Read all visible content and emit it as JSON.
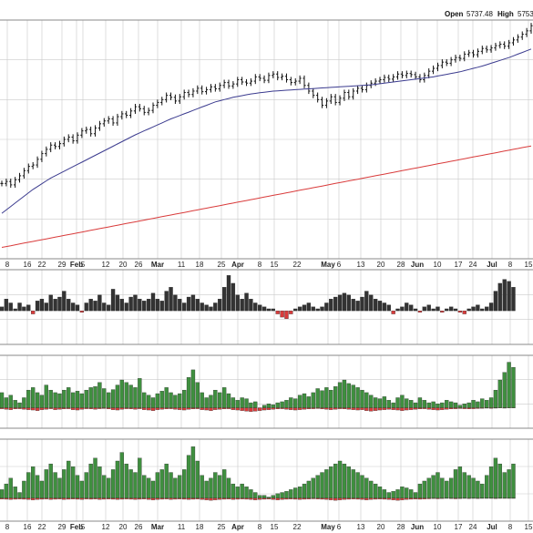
{
  "header": {
    "open_label": "Open",
    "open_value": "5737.48",
    "high_label": "High",
    "high_value": "5753."
  },
  "colors": {
    "background": "#ffffff",
    "panel_border": "#888888",
    "grid": "#c9c9c9",
    "price_bar": "#111111",
    "ma_short": "#3b3b8f",
    "ma_long": "#d93b3b",
    "volume_bar": "#333333",
    "volume_down": "#d93b3b",
    "indicator_up": "#3f8f3f",
    "indicator_down": "#d93b3b"
  },
  "chart_data": {
    "type": "bar",
    "note_series": "OHLC price chart with two moving averages and three histogram indicator panels",
    "x_tick_labels": [
      "8",
      "16",
      "22",
      "29",
      "Feb",
      "5",
      "12",
      "20",
      "26",
      "Mar",
      "11",
      "18",
      "25",
      "Apr",
      "8",
      "15",
      "22",
      "May",
      "6",
      "13",
      "20",
      "28",
      "Jun",
      "10",
      "17",
      "24",
      "Jul",
      "8",
      "15"
    ],
    "x_tick_bold": [
      false,
      false,
      false,
      false,
      true,
      false,
      false,
      false,
      false,
      true,
      false,
      false,
      false,
      true,
      false,
      false,
      false,
      true,
      false,
      false,
      false,
      false,
      true,
      false,
      false,
      false,
      true,
      false,
      false
    ],
    "x_tick_positions": [
      8,
      30,
      46,
      68,
      84,
      91,
      116,
      135,
      152,
      173,
      199,
      219,
      243,
      261,
      285,
      301,
      326,
      360,
      372,
      396,
      418,
      440,
      458,
      480,
      503,
      519,
      540,
      560,
      580
    ],
    "price_closes": [
      4785,
      4792,
      4780,
      4798,
      4812,
      4830,
      4845,
      4850,
      4870,
      4890,
      4905,
      4920,
      4915,
      4925,
      4940,
      4948,
      4935,
      4955,
      4970,
      4975,
      4960,
      4980,
      4995,
      5005,
      5012,
      4998,
      5020,
      5030,
      5025,
      5040,
      5055,
      5048,
      5035,
      5042,
      5060,
      5070,
      5080,
      5095,
      5088,
      5075,
      5090,
      5105,
      5098,
      5110,
      5120,
      5108,
      5115,
      5125,
      5118,
      5130,
      5140,
      5128,
      5135,
      5150,
      5142,
      5138,
      5145,
      5160,
      5155,
      5148,
      5165,
      5170,
      5158,
      5162,
      5150,
      5140,
      5145,
      5155,
      5130,
      5110,
      5095,
      5080,
      5060,
      5075,
      5090,
      5070,
      5085,
      5105,
      5090,
      5110,
      5120,
      5115,
      5130,
      5138,
      5145,
      5150,
      5158,
      5152,
      5160,
      5170,
      5165,
      5172,
      5168,
      5160,
      5150,
      5165,
      5180,
      5190,
      5200,
      5212,
      5208,
      5220,
      5228,
      5225,
      5240,
      5245,
      5238,
      5250,
      5260,
      5255,
      5262,
      5270,
      5275,
      5268,
      5280,
      5290,
      5300,
      5310,
      5322,
      5340
    ],
    "ma50": [
      4680,
      4692,
      4704,
      4716,
      4728,
      4740,
      4752,
      4764,
      4774,
      4784,
      4794,
      4804,
      4812,
      4820,
      4828,
      4836,
      4844,
      4852,
      4860,
      4868,
      4876,
      4884,
      4892,
      4900,
      4908,
      4916,
      4924,
      4932,
      4940,
      4948,
      4956,
      4963,
      4970,
      4977,
      4984,
      4991,
      4998,
      5005,
      5012,
      5018,
      5024,
      5030,
      5036,
      5042,
      5048,
      5054,
      5060,
      5066,
      5072,
      5076,
      5080,
      5084,
      5088,
      5091,
      5094,
      5097,
      5100,
      5102,
      5104,
      5106,
      5108,
      5110,
      5111,
      5112,
      5113,
      5114,
      5115,
      5116,
      5117,
      5118,
      5119,
      5120,
      5121,
      5122,
      5123,
      5124,
      5125,
      5126,
      5127,
      5128,
      5129,
      5130,
      5131,
      5132,
      5134,
      5136,
      5138,
      5140,
      5142,
      5144,
      5146,
      5148,
      5150,
      5152,
      5154,
      5156,
      5158,
      5160,
      5163,
      5166,
      5169,
      5172,
      5175,
      5178,
      5182,
      5186,
      5190,
      5194,
      5198,
      5203,
      5208,
      5213,
      5218,
      5223,
      5228,
      5234,
      5240,
      5246,
      5252,
      5258
    ],
    "ma200": [
      4560,
      4563,
      4566,
      4569,
      4572,
      4575,
      4578,
      4581,
      4584,
      4587,
      4590,
      4593,
      4596,
      4599,
      4602,
      4605,
      4608,
      4611,
      4614,
      4617,
      4620,
      4623,
      4626,
      4629,
      4632,
      4635,
      4638,
      4641,
      4644,
      4647,
      4650,
      4653,
      4656,
      4659,
      4662,
      4665,
      4668,
      4671,
      4674,
      4677,
      4680,
      4683,
      4686,
      4689,
      4692,
      4695,
      4698,
      4701,
      4704,
      4707,
      4710,
      4713,
      4716,
      4719,
      4722,
      4725,
      4728,
      4731,
      4734,
      4737,
      4740,
      4743,
      4746,
      4749,
      4752,
      4755,
      4758,
      4761,
      4764,
      4767,
      4770,
      4773,
      4776,
      4779,
      4782,
      4785,
      4788,
      4791,
      4794,
      4797,
      4800,
      4803,
      4806,
      4809,
      4812,
      4815,
      4818,
      4821,
      4824,
      4827,
      4830,
      4833,
      4836,
      4839,
      4842,
      4845,
      4848,
      4851,
      4854,
      4857,
      4860,
      4863,
      4866,
      4869,
      4872,
      4875,
      4878,
      4881,
      4884,
      4887,
      4890,
      4893,
      4896,
      4899,
      4902,
      4905,
      4908,
      4911,
      4914,
      4917
    ],
    "price_ylim": [
      4520,
      5360
    ],
    "volume_panel": [
      0.1,
      0.3,
      0.2,
      0.05,
      0.2,
      0.1,
      0.15,
      -0.1,
      0.25,
      0.3,
      0.2,
      0.4,
      0.3,
      0.35,
      0.5,
      0.3,
      0.2,
      0.15,
      -0.05,
      0.2,
      0.3,
      0.25,
      0.4,
      0.2,
      0.15,
      0.55,
      0.4,
      0.3,
      0.2,
      0.35,
      0.4,
      0.3,
      0.25,
      0.3,
      0.45,
      0.3,
      0.25,
      0.5,
      0.6,
      0.4,
      0.3,
      0.2,
      0.35,
      0.4,
      0.3,
      0.2,
      0.15,
      0.1,
      0.2,
      0.3,
      0.6,
      0.9,
      0.7,
      0.4,
      0.3,
      0.45,
      0.3,
      0.2,
      0.15,
      0.1,
      0.05,
      0.05,
      -0.1,
      -0.2,
      -0.25,
      -0.1,
      0.05,
      0.1,
      0.15,
      0.2,
      0.1,
      0.05,
      0.1,
      0.2,
      0.3,
      0.35,
      0.4,
      0.45,
      0.4,
      0.3,
      0.25,
      0.35,
      0.5,
      0.4,
      0.3,
      0.25,
      0.2,
      0.15,
      -0.1,
      0.05,
      0.1,
      0.2,
      0.15,
      0.05,
      -0.05,
      0.1,
      0.15,
      0.05,
      0.1,
      -0.05,
      0.05,
      0.1,
      0.05,
      -0.05,
      -0.1,
      0.05,
      0.1,
      0.15,
      0.05,
      0.1,
      0.2,
      0.5,
      0.7,
      0.8,
      0.75,
      0.6
    ],
    "indicator1": [
      0.3,
      0.2,
      0.25,
      0.15,
      0.1,
      0.2,
      0.35,
      0.4,
      0.3,
      0.25,
      0.45,
      0.35,
      0.3,
      0.28,
      0.35,
      0.4,
      0.3,
      0.33,
      0.28,
      0.35,
      0.4,
      0.42,
      0.5,
      0.38,
      0.3,
      0.36,
      0.45,
      0.55,
      0.5,
      0.45,
      0.4,
      0.58,
      0.3,
      0.25,
      0.2,
      0.28,
      0.33,
      0.4,
      0.3,
      0.25,
      0.28,
      0.35,
      0.6,
      0.75,
      0.5,
      0.3,
      0.2,
      0.25,
      0.35,
      0.3,
      0.4,
      0.28,
      0.2,
      0.15,
      0.2,
      0.18,
      0.1,
      0.12,
      -0.05,
      0.05,
      0.08,
      0.06,
      0.1,
      0.12,
      0.15,
      0.2,
      0.18,
      0.25,
      0.28,
      0.22,
      0.3,
      0.38,
      0.34,
      0.4,
      0.35,
      0.42,
      0.5,
      0.55,
      0.48,
      0.45,
      0.4,
      0.35,
      0.3,
      0.25,
      0.2,
      0.18,
      0.22,
      0.15,
      0.1,
      0.2,
      0.25,
      0.18,
      0.15,
      0.1,
      0.2,
      0.15,
      0.1,
      0.12,
      0.08,
      0.1,
      0.15,
      0.12,
      0.1,
      0.05,
      0.08,
      0.1,
      0.15,
      0.12,
      0.18,
      0.15,
      0.2,
      0.35,
      0.55,
      0.7,
      0.9,
      0.8
    ],
    "indicator1_down": [
      -0.05,
      -0.08,
      -0.1,
      -0.06,
      -0.05,
      -0.08,
      -0.1,
      -0.12,
      -0.15,
      -0.1,
      -0.08,
      -0.05,
      -0.1,
      -0.08,
      -0.06,
      -0.05,
      -0.1,
      -0.12,
      -0.08,
      -0.05,
      -0.06,
      -0.08,
      -0.05,
      -0.04,
      -0.06,
      -0.1,
      -0.12,
      -0.08,
      -0.05,
      -0.06,
      -0.08,
      -0.05,
      -0.1,
      -0.12,
      -0.15,
      -0.1,
      -0.08,
      -0.06,
      -0.05,
      -0.08,
      -0.1,
      -0.12,
      -0.08,
      -0.06,
      -0.05,
      -0.1,
      -0.12,
      -0.15,
      -0.1,
      -0.08,
      -0.06,
      -0.05,
      -0.1,
      -0.12,
      -0.15,
      -0.18,
      -0.2,
      -0.18,
      -0.15,
      -0.12,
      -0.1,
      -0.08,
      -0.06,
      -0.05,
      -0.08,
      -0.1,
      -0.12,
      -0.1,
      -0.08,
      -0.06,
      -0.05,
      -0.04,
      -0.06,
      -0.08,
      -0.1,
      -0.08,
      -0.05,
      -0.06,
      -0.08,
      -0.1,
      -0.12,
      -0.1,
      -0.15,
      -0.18,
      -0.15,
      -0.12,
      -0.1,
      -0.08,
      -0.1,
      -0.12,
      -0.15,
      -0.12,
      -0.1,
      -0.08,
      -0.06,
      -0.05,
      -0.08,
      -0.1,
      -0.12,
      -0.1,
      -0.08,
      -0.06,
      -0.05,
      -0.04,
      -0.05,
      -0.06,
      -0.05,
      -0.04,
      -0.03,
      -0.02,
      -0.03,
      -0.02,
      -0.01,
      -0.02,
      -0.01,
      -0.01
    ],
    "indicator2": [
      0.15,
      0.25,
      0.35,
      0.2,
      0.1,
      0.3,
      0.45,
      0.55,
      0.4,
      0.3,
      0.5,
      0.6,
      0.45,
      0.35,
      0.5,
      0.65,
      0.55,
      0.4,
      0.3,
      0.45,
      0.6,
      0.7,
      0.55,
      0.4,
      0.35,
      0.5,
      0.65,
      0.8,
      0.6,
      0.5,
      0.45,
      0.7,
      0.4,
      0.35,
      0.3,
      0.45,
      0.5,
      0.6,
      0.45,
      0.35,
      0.4,
      0.5,
      0.75,
      0.9,
      0.65,
      0.4,
      0.3,
      0.35,
      0.45,
      0.4,
      0.5,
      0.35,
      0.25,
      0.2,
      0.25,
      0.2,
      0.15,
      0.1,
      0.05,
      0.05,
      0.02,
      0.05,
      0.08,
      0.1,
      0.12,
      0.15,
      0.18,
      0.2,
      0.25,
      0.3,
      0.35,
      0.4,
      0.45,
      0.5,
      0.55,
      0.6,
      0.65,
      0.6,
      0.55,
      0.5,
      0.45,
      0.4,
      0.35,
      0.3,
      0.25,
      0.2,
      0.15,
      0.1,
      0.12,
      0.15,
      0.2,
      0.18,
      0.15,
      0.1,
      0.25,
      0.3,
      0.35,
      0.4,
      0.45,
      0.35,
      0.3,
      0.35,
      0.5,
      0.55,
      0.45,
      0.4,
      0.35,
      0.3,
      0.25,
      0.4,
      0.55,
      0.7,
      0.6,
      0.45,
      0.5,
      0.6
    ],
    "indicator2_down": [
      -0.04,
      -0.05,
      -0.06,
      -0.05,
      -0.04,
      -0.05,
      -0.06,
      -0.08,
      -0.06,
      -0.05,
      -0.04,
      -0.06,
      -0.05,
      -0.04,
      -0.06,
      -0.05,
      -0.04,
      -0.05,
      -0.06,
      -0.04,
      -0.05,
      -0.04,
      -0.06,
      -0.05,
      -0.04,
      -0.05,
      -0.06,
      -0.05,
      -0.04,
      -0.05,
      -0.06,
      -0.05,
      -0.04,
      -0.06,
      -0.08,
      -0.06,
      -0.05,
      -0.04,
      -0.06,
      -0.05,
      -0.04,
      -0.05,
      -0.06,
      -0.05,
      -0.04,
      -0.06,
      -0.08,
      -0.1,
      -0.08,
      -0.06,
      -0.05,
      -0.04,
      -0.06,
      -0.05,
      -0.04,
      -0.05,
      -0.06,
      -0.08,
      -0.06,
      -0.05,
      -0.04,
      -0.06,
      -0.08,
      -0.06,
      -0.05,
      -0.04,
      -0.05,
      -0.06,
      -0.05,
      -0.04,
      -0.03,
      -0.04,
      -0.05,
      -0.06,
      -0.08,
      -0.1,
      -0.08,
      -0.06,
      -0.05,
      -0.04,
      -0.05,
      -0.06,
      -0.08,
      -0.06,
      -0.05,
      -0.04,
      -0.05,
      -0.06,
      -0.08,
      -0.1,
      -0.08,
      -0.06,
      -0.05,
      -0.04,
      -0.05,
      -0.04,
      -0.03,
      -0.02,
      -0.03,
      -0.02,
      -0.01,
      -0.02,
      -0.03,
      -0.02,
      -0.01,
      -0.02,
      -0.01,
      -0.02,
      -0.01,
      -0.01,
      -0.01,
      -0.02,
      -0.01,
      -0.01,
      -0.01,
      -0.01
    ]
  }
}
